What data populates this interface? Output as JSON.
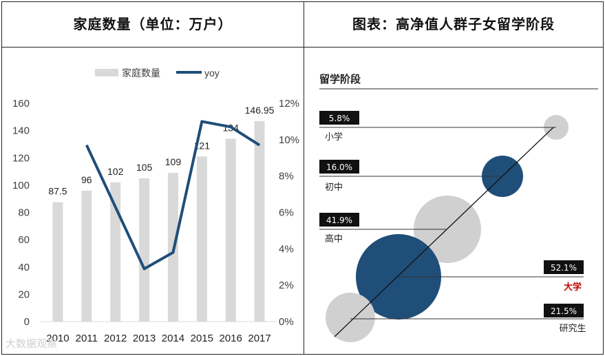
{
  "headers": {
    "left": "家庭数量（单位：万户）",
    "right": "图表：高净值人群子女留学阶段"
  },
  "watermark": "大数据观察",
  "chart_data": [
    {
      "type": "bar+line",
      "title": "家庭数量（单位：万户）",
      "categories": [
        "2010",
        "2011",
        "2012",
        "2013",
        "2014",
        "2015",
        "2016",
        "2017"
      ],
      "series": [
        {
          "name": "家庭数量",
          "type": "bar",
          "axis": "left",
          "color": "#d9d9d9",
          "values": [
            87.5,
            96,
            102,
            105,
            109,
            121,
            134,
            146.95
          ],
          "labels": [
            "87.5",
            "96",
            "102",
            "105",
            "109",
            "121",
            "134",
            "146.95"
          ]
        },
        {
          "name": "yoy",
          "type": "line",
          "axis": "right",
          "color": "#1f4e79",
          "values": [
            null,
            9.7,
            6.3,
            2.9,
            3.8,
            11.0,
            10.7,
            9.7
          ]
        }
      ],
      "y_left": {
        "min": 0,
        "max": 160,
        "ticks": [
          "0",
          "20",
          "40",
          "60",
          "80",
          "100",
          "120",
          "140",
          "160"
        ]
      },
      "y_right": {
        "min": 0,
        "max": 12,
        "ticks": [
          "0%",
          "2%",
          "4%",
          "6%",
          "8%",
          "10%",
          "12%"
        ]
      },
      "legend": "top-center"
    },
    {
      "type": "bubble",
      "title": "留学阶段",
      "items": [
        {
          "stage": "小学",
          "pct": "5.8%",
          "value": 5.8,
          "color": "#d0d0d0",
          "highlight": false
        },
        {
          "stage": "初中",
          "pct": "16.0%",
          "value": 16.0,
          "color": "#1f4e79",
          "highlight": false
        },
        {
          "stage": "高中",
          "pct": "41.9%",
          "value": 41.9,
          "color": "#d0d0d0",
          "highlight": false
        },
        {
          "stage": "大学",
          "pct": "52.1%",
          "value": 52.1,
          "color": "#1f4e79",
          "highlight": true
        },
        {
          "stage": "研究生",
          "pct": "21.5%",
          "value": 21.5,
          "color": "#d0d0d0",
          "highlight": false
        }
      ],
      "highlight_color": "#c00000"
    }
  ]
}
